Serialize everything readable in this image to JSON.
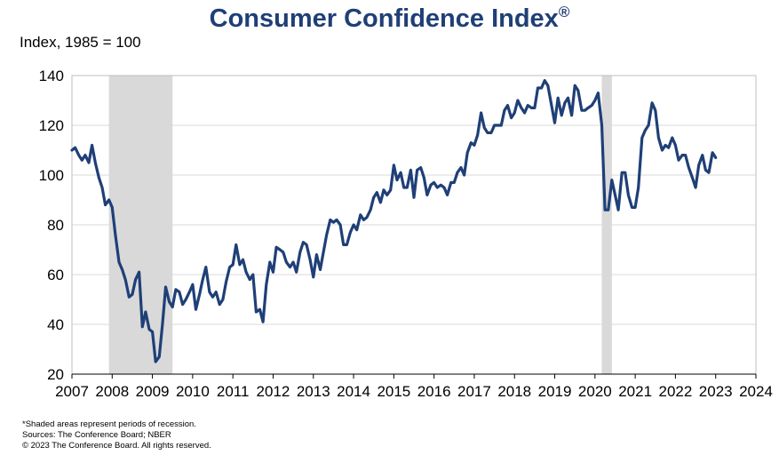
{
  "title": "Consumer Confidence Index",
  "title_mark": "®",
  "ylabel": "Index, 1985 = 100",
  "footnotes": [
    "*Shaded areas represent periods of recession.",
    "Sources: The Conference Board; NBER",
    "© 2023 The Conference Board. All rights reserved."
  ],
  "colors": {
    "line": "#1f3f77",
    "recession": "#d9d9d9",
    "grid": "#d9d9d9",
    "title": "#1f3f77"
  },
  "chart_data": {
    "type": "line",
    "title": "Consumer Confidence Index®",
    "xlabel": "",
    "ylabel": "Index, 1985 = 100",
    "xlim": [
      2007,
      2024
    ],
    "ylim": [
      20,
      140
    ],
    "x_ticks": [
      2007,
      2008,
      2009,
      2010,
      2011,
      2012,
      2013,
      2014,
      2015,
      2016,
      2017,
      2018,
      2019,
      2020,
      2021,
      2022,
      2023,
      2024
    ],
    "y_ticks": [
      20,
      40,
      60,
      80,
      100,
      120,
      140
    ],
    "grid": "horizontal",
    "recessions": [
      [
        2007.92,
        2009.5
      ],
      [
        2020.17,
        2020.42
      ]
    ],
    "series": [
      {
        "values": [
          [
            2007.0,
            110
          ],
          [
            2007.08,
            111
          ],
          [
            2007.17,
            108
          ],
          [
            2007.25,
            106
          ],
          [
            2007.33,
            108
          ],
          [
            2007.42,
            105
          ],
          [
            2007.5,
            112
          ],
          [
            2007.58,
            105
          ],
          [
            2007.67,
            99
          ],
          [
            2007.75,
            95
          ],
          [
            2007.83,
            88
          ],
          [
            2007.92,
            90
          ],
          [
            2008.0,
            87
          ],
          [
            2008.08,
            76
          ],
          [
            2008.17,
            65
          ],
          [
            2008.25,
            62
          ],
          [
            2008.33,
            58
          ],
          [
            2008.42,
            51
          ],
          [
            2008.5,
            52
          ],
          [
            2008.58,
            58
          ],
          [
            2008.67,
            61
          ],
          [
            2008.75,
            39
          ],
          [
            2008.83,
            45
          ],
          [
            2008.92,
            38
          ],
          [
            2009.0,
            37
          ],
          [
            2009.08,
            25
          ],
          [
            2009.17,
            27
          ],
          [
            2009.25,
            40
          ],
          [
            2009.33,
            55
          ],
          [
            2009.42,
            49
          ],
          [
            2009.5,
            47
          ],
          [
            2009.58,
            54
          ],
          [
            2009.67,
            53
          ],
          [
            2009.75,
            48
          ],
          [
            2009.83,
            50
          ],
          [
            2009.92,
            53
          ],
          [
            2010.0,
            56
          ],
          [
            2010.08,
            46
          ],
          [
            2010.17,
            52
          ],
          [
            2010.25,
            58
          ],
          [
            2010.33,
            63
          ],
          [
            2010.42,
            53
          ],
          [
            2010.5,
            51
          ],
          [
            2010.58,
            53
          ],
          [
            2010.67,
            48
          ],
          [
            2010.75,
            50
          ],
          [
            2010.83,
            57
          ],
          [
            2010.92,
            63
          ],
          [
            2011.0,
            64
          ],
          [
            2011.08,
            72
          ],
          [
            2011.17,
            64
          ],
          [
            2011.25,
            66
          ],
          [
            2011.33,
            61
          ],
          [
            2011.42,
            58
          ],
          [
            2011.5,
            60
          ],
          [
            2011.58,
            45
          ],
          [
            2011.67,
            46
          ],
          [
            2011.75,
            41
          ],
          [
            2011.83,
            56
          ],
          [
            2011.92,
            65
          ],
          [
            2012.0,
            61
          ],
          [
            2012.08,
            71
          ],
          [
            2012.17,
            70
          ],
          [
            2012.25,
            69
          ],
          [
            2012.33,
            65
          ],
          [
            2012.42,
            63
          ],
          [
            2012.5,
            65
          ],
          [
            2012.58,
            61
          ],
          [
            2012.67,
            69
          ],
          [
            2012.75,
            73
          ],
          [
            2012.83,
            72
          ],
          [
            2012.92,
            66
          ],
          [
            2013.0,
            59
          ],
          [
            2013.08,
            68
          ],
          [
            2013.17,
            62
          ],
          [
            2013.25,
            69
          ],
          [
            2013.33,
            76
          ],
          [
            2013.42,
            82
          ],
          [
            2013.5,
            81
          ],
          [
            2013.58,
            82
          ],
          [
            2013.67,
            80
          ],
          [
            2013.75,
            72
          ],
          [
            2013.83,
            72
          ],
          [
            2013.92,
            77
          ],
          [
            2014.0,
            80
          ],
          [
            2014.08,
            78
          ],
          [
            2014.17,
            84
          ],
          [
            2014.25,
            82
          ],
          [
            2014.33,
            83
          ],
          [
            2014.42,
            86
          ],
          [
            2014.5,
            91
          ],
          [
            2014.58,
            93
          ],
          [
            2014.67,
            89
          ],
          [
            2014.75,
            94
          ],
          [
            2014.83,
            92
          ],
          [
            2014.92,
            94
          ],
          [
            2015.0,
            104
          ],
          [
            2015.08,
            98
          ],
          [
            2015.17,
            101
          ],
          [
            2015.25,
            95
          ],
          [
            2015.33,
            95
          ],
          [
            2015.42,
            102
          ],
          [
            2015.5,
            91
          ],
          [
            2015.58,
            102
          ],
          [
            2015.67,
            103
          ],
          [
            2015.75,
            99
          ],
          [
            2015.83,
            92
          ],
          [
            2015.92,
            96
          ],
          [
            2016.0,
            97
          ],
          [
            2016.08,
            95
          ],
          [
            2016.17,
            96
          ],
          [
            2016.25,
            95
          ],
          [
            2016.33,
            92
          ],
          [
            2016.42,
            97
          ],
          [
            2016.5,
            97
          ],
          [
            2016.58,
            101
          ],
          [
            2016.67,
            103
          ],
          [
            2016.75,
            100
          ],
          [
            2016.83,
            109
          ],
          [
            2016.92,
            113
          ],
          [
            2017.0,
            112
          ],
          [
            2017.08,
            116
          ],
          [
            2017.17,
            125
          ],
          [
            2017.25,
            119
          ],
          [
            2017.33,
            117
          ],
          [
            2017.42,
            117
          ],
          [
            2017.5,
            120
          ],
          [
            2017.58,
            120
          ],
          [
            2017.67,
            120
          ],
          [
            2017.75,
            126
          ],
          [
            2017.83,
            128
          ],
          [
            2017.92,
            123
          ],
          [
            2018.0,
            125
          ],
          [
            2018.08,
            130
          ],
          [
            2018.17,
            127
          ],
          [
            2018.25,
            125
          ],
          [
            2018.33,
            128
          ],
          [
            2018.42,
            127
          ],
          [
            2018.5,
            127
          ],
          [
            2018.58,
            135
          ],
          [
            2018.67,
            135
          ],
          [
            2018.75,
            138
          ],
          [
            2018.83,
            136
          ],
          [
            2018.92,
            128
          ],
          [
            2019.0,
            121
          ],
          [
            2019.08,
            131
          ],
          [
            2019.17,
            124
          ],
          [
            2019.25,
            129
          ],
          [
            2019.33,
            131
          ],
          [
            2019.42,
            124
          ],
          [
            2019.5,
            136
          ],
          [
            2019.58,
            134
          ],
          [
            2019.67,
            126
          ],
          [
            2019.75,
            126
          ],
          [
            2019.83,
            127
          ],
          [
            2019.92,
            128
          ],
          [
            2020.0,
            130
          ],
          [
            2020.08,
            133
          ],
          [
            2020.17,
            120
          ],
          [
            2020.25,
            86
          ],
          [
            2020.33,
            86
          ],
          [
            2020.42,
            98
          ],
          [
            2020.5,
            92
          ],
          [
            2020.58,
            86
          ],
          [
            2020.67,
            101
          ],
          [
            2020.75,
            101
          ],
          [
            2020.83,
            92
          ],
          [
            2020.92,
            87
          ],
          [
            2021.0,
            87
          ],
          [
            2021.08,
            95
          ],
          [
            2021.17,
            115
          ],
          [
            2021.25,
            118
          ],
          [
            2021.33,
            120
          ],
          [
            2021.42,
            129
          ],
          [
            2021.5,
            126
          ],
          [
            2021.58,
            115
          ],
          [
            2021.67,
            110
          ],
          [
            2021.75,
            112
          ],
          [
            2021.83,
            111
          ],
          [
            2021.92,
            115
          ],
          [
            2022.0,
            112
          ],
          [
            2022.08,
            106
          ],
          [
            2022.17,
            108
          ],
          [
            2022.25,
            108
          ],
          [
            2022.33,
            103
          ],
          [
            2022.42,
            99
          ],
          [
            2022.5,
            95
          ],
          [
            2022.58,
            104
          ],
          [
            2022.67,
            108
          ],
          [
            2022.75,
            102
          ],
          [
            2022.83,
            101
          ],
          [
            2022.92,
            109
          ],
          [
            2023.0,
            107
          ]
        ]
      }
    ]
  }
}
